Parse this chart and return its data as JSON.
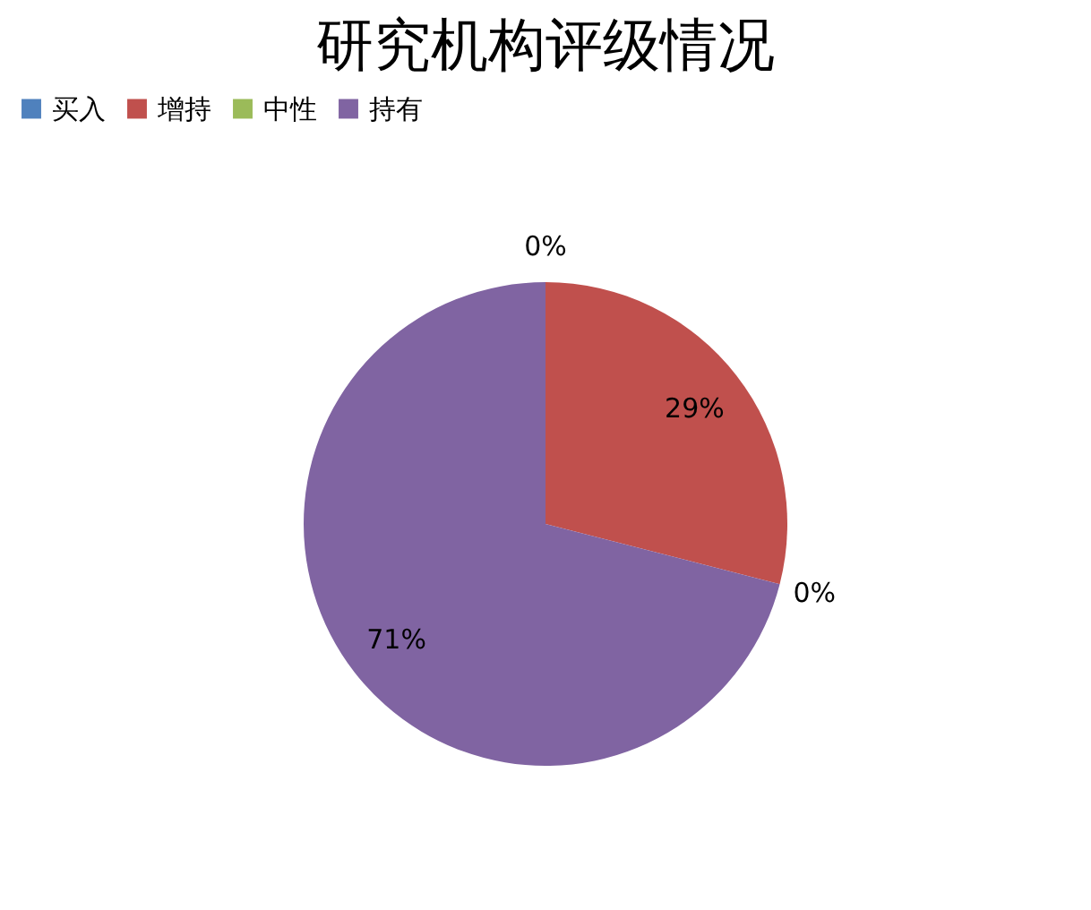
{
  "chart_data": {
    "type": "pie",
    "title": "研究机构评级情况",
    "categories": [
      "买入",
      "增持",
      "中性",
      "持有"
    ],
    "values": [
      0,
      29,
      0,
      71
    ],
    "colors": [
      "#4f81bd",
      "#c0504d",
      "#9bbb59",
      "#8064a2"
    ],
    "value_labels": [
      "0%",
      "29%",
      "0%",
      "71%"
    ],
    "legend": "top"
  }
}
